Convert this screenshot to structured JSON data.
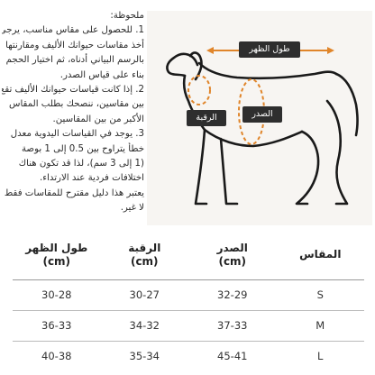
{
  "notes": {
    "heading": "ملحوظة:",
    "lines": [
      "1. للحصول على مقاس مناسب، يرجى",
      "أخذ مقاسات حيوانك الأليف ومقارنتها",
      "بالرسم البياني أدناه، ثم اختيار الحجم",
      "بناء على قياس الصدر.",
      "2. إذا كانت قياسات حيوانك الأليف تقع",
      "بين مقاسين، ننصحك بطلب المقاس",
      "الأكبر من بين المقاسين.",
      "3. يوجد في القياسات اليدوية معدل",
      "خطأ يتراوح بين 0.5 إلى 1 بوصة",
      "(1 إلى 3 سم)، لذا قد تكون هناك",
      "اختلافات فردية عند الارتداء.",
      "يعتبر هذا دليل مقترح للمقاسات فقط",
      "لا غير."
    ]
  },
  "diagram": {
    "back_label": "طول الظهر",
    "neck_label": "الرقبة",
    "chest_label": "الصدر",
    "colors": {
      "dog": "#1a1a1a",
      "arrow": "#e0852a",
      "label_bg": "#2e2e2e",
      "panel_bg": "#f7f5f2"
    }
  },
  "table": {
    "headers": {
      "size": "المقاس",
      "chest": "الصدر",
      "neck": "الرقبة",
      "back": "طول الظهر",
      "unit": "(cm)"
    },
    "rows": [
      {
        "size": "S",
        "chest": "32-29",
        "neck": "30-27",
        "back": "30-28"
      },
      {
        "size": "M",
        "chest": "37-33",
        "neck": "34-32",
        "back": "36-33"
      },
      {
        "size": "L",
        "chest": "45-41",
        "neck": "35-34",
        "back": "40-38"
      }
    ]
  }
}
